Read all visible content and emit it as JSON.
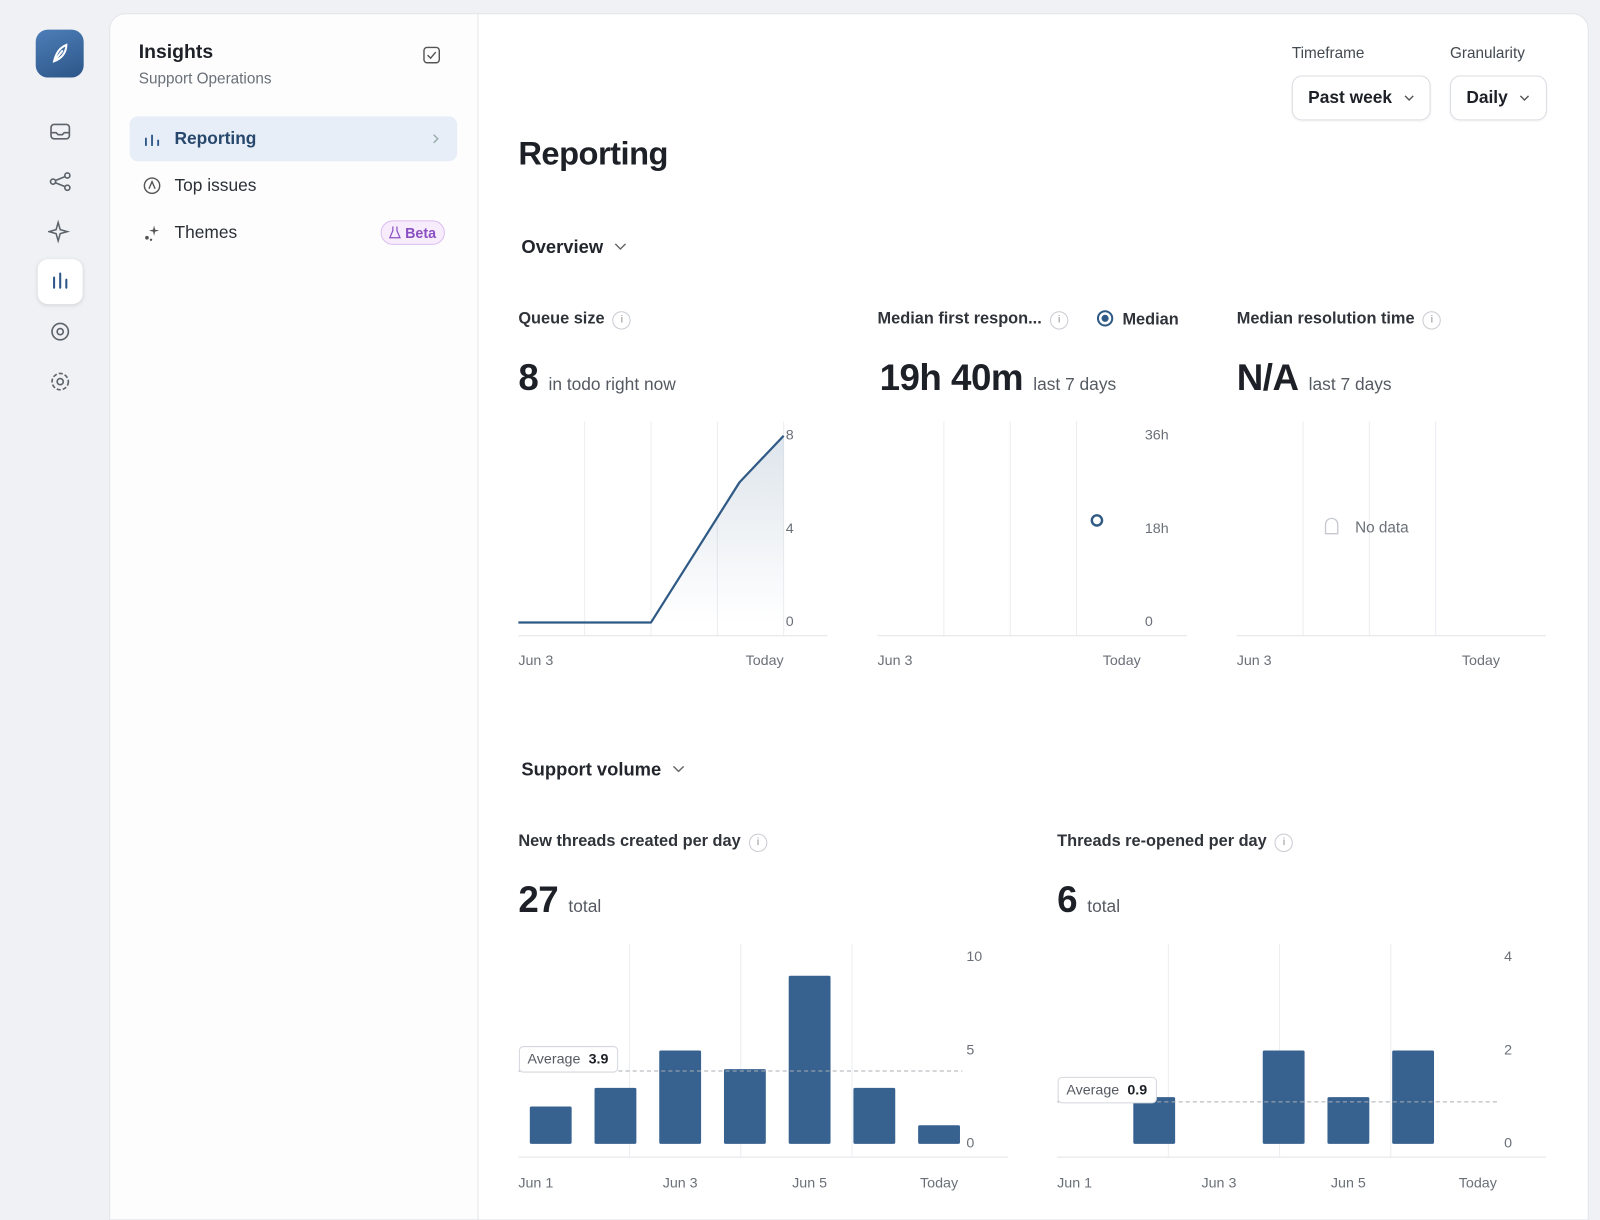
{
  "sidebar": {
    "title": "Insights",
    "subtitle": "Support Operations",
    "items": [
      {
        "label": "Reporting"
      },
      {
        "label": "Top issues"
      },
      {
        "label": "Themes",
        "badge": "Beta"
      }
    ]
  },
  "filters": [
    {
      "label": "Timeframe",
      "value": "Past week"
    },
    {
      "label": "Granularity",
      "value": "Daily"
    }
  ],
  "page_title": "Reporting",
  "sections": [
    "Overview",
    "Support volume"
  ],
  "chart_data": [
    {
      "type": "line",
      "title": "Queue size",
      "stat": 8,
      "stat_note": "in todo right now",
      "categories": [
        "Jun 3",
        null,
        null,
        null,
        null,
        null,
        "Today"
      ],
      "values": [
        0,
        0,
        0,
        0,
        3,
        6,
        8
      ],
      "color": "#2f5a85",
      "ylim": [
        0,
        8
      ],
      "yticks": [
        0,
        4,
        8
      ]
    },
    {
      "type": "scatter",
      "title": "Median first respon...",
      "legend": "Median",
      "stat": "19h 40m",
      "stat_note": "last 7 days",
      "categories": [
        "Jun 3",
        null,
        null,
        null,
        null,
        null,
        "Today"
      ],
      "values": [
        null,
        null,
        null,
        null,
        null,
        19.67,
        null
      ],
      "color": "#2f5a85",
      "ylim": [
        0,
        36
      ],
      "yticks": [
        0,
        {
          "value": 18,
          "label": "18h"
        },
        {
          "value": 36,
          "label": "36h"
        }
      ]
    },
    {
      "type": "line",
      "title": "Median resolution time",
      "stat": "N/A",
      "stat_note": "last 7 days",
      "categories": [
        "Jun 3",
        null,
        null,
        null,
        null,
        null,
        "Today"
      ],
      "values": [
        null,
        null,
        null,
        null,
        null,
        null,
        null
      ],
      "color": "#2f5a85",
      "annotation": "No data"
    },
    {
      "type": "bar",
      "title": "New threads created per day",
      "stat": 27,
      "stat_note": "total",
      "categories": [
        "Jun 1",
        null,
        "Jun 3",
        null,
        "Jun 5",
        null,
        "Today"
      ],
      "values": [
        2,
        3,
        5,
        4,
        9,
        3,
        1
      ],
      "color": "#37618f",
      "ylim": [
        0,
        10
      ],
      "yticks": [
        0,
        5,
        10
      ],
      "average": {
        "label": "Average",
        "value": 3.9
      }
    },
    {
      "type": "bar",
      "title": "Threads re-opened per day",
      "stat": 6,
      "stat_note": "total",
      "categories": [
        "Jun 1",
        null,
        "Jun 3",
        null,
        "Jun 5",
        null,
        "Today"
      ],
      "values": [
        0,
        1,
        0,
        2,
        1,
        2,
        0
      ],
      "color": "#37618f",
      "ylim": [
        0,
        4
      ],
      "yticks": [
        0,
        2,
        4
      ],
      "average": {
        "label": "Average",
        "value": 0.9
      }
    }
  ]
}
